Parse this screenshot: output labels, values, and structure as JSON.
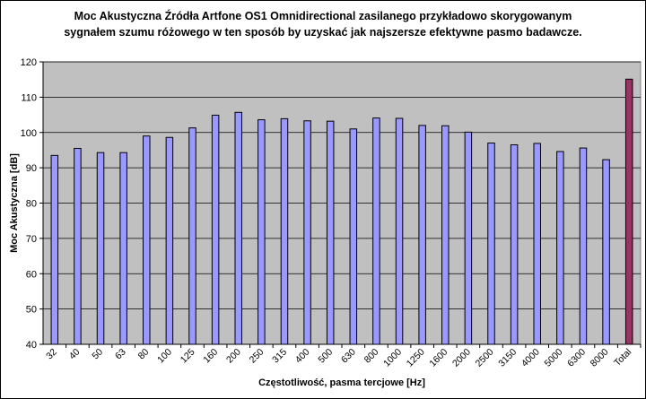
{
  "chart_data": {
    "type": "bar",
    "title_line1": "Moc Akustyczna  Źródła Artfone OS1 Omnidirectional zasilanego przykładowo skorygowanym",
    "title_line2": "sygnałem szumu różowego w ten sposób by uzyskać jak najszersze efektywne pasmo badawcze.",
    "xlabel": "Częstotliwość, pasma tercjowe  [Hz]",
    "ylabel": "Moc Akustyczna [dB]",
    "ylim": [
      40,
      120
    ],
    "yticks": [
      40,
      50,
      60,
      70,
      80,
      90,
      100,
      110,
      120
    ],
    "grid": true,
    "categories": [
      "32",
      "40",
      "50",
      "63",
      "80",
      "100",
      "125",
      "160",
      "200",
      "250",
      "315",
      "400",
      "500",
      "630",
      "800",
      "1000",
      "1250",
      "1600",
      "2000",
      "2500",
      "3150",
      "4000",
      "5000",
      "6300",
      "8000",
      "Total"
    ],
    "values": [
      93.5,
      95.5,
      94.3,
      94.3,
      99.0,
      98.6,
      101.3,
      104.9,
      105.7,
      103.6,
      103.9,
      103.3,
      103.2,
      101.0,
      104.1,
      104.0,
      102.0,
      101.9,
      100.1,
      97.0,
      96.5,
      96.9,
      94.6,
      95.6,
      92.3,
      115.1
    ],
    "colors": {
      "bar": "#9999ff",
      "total_bar": "#993366",
      "plot_bg": "#c0c0c0",
      "grid": "#000000",
      "bar_stroke": "#000000"
    }
  }
}
